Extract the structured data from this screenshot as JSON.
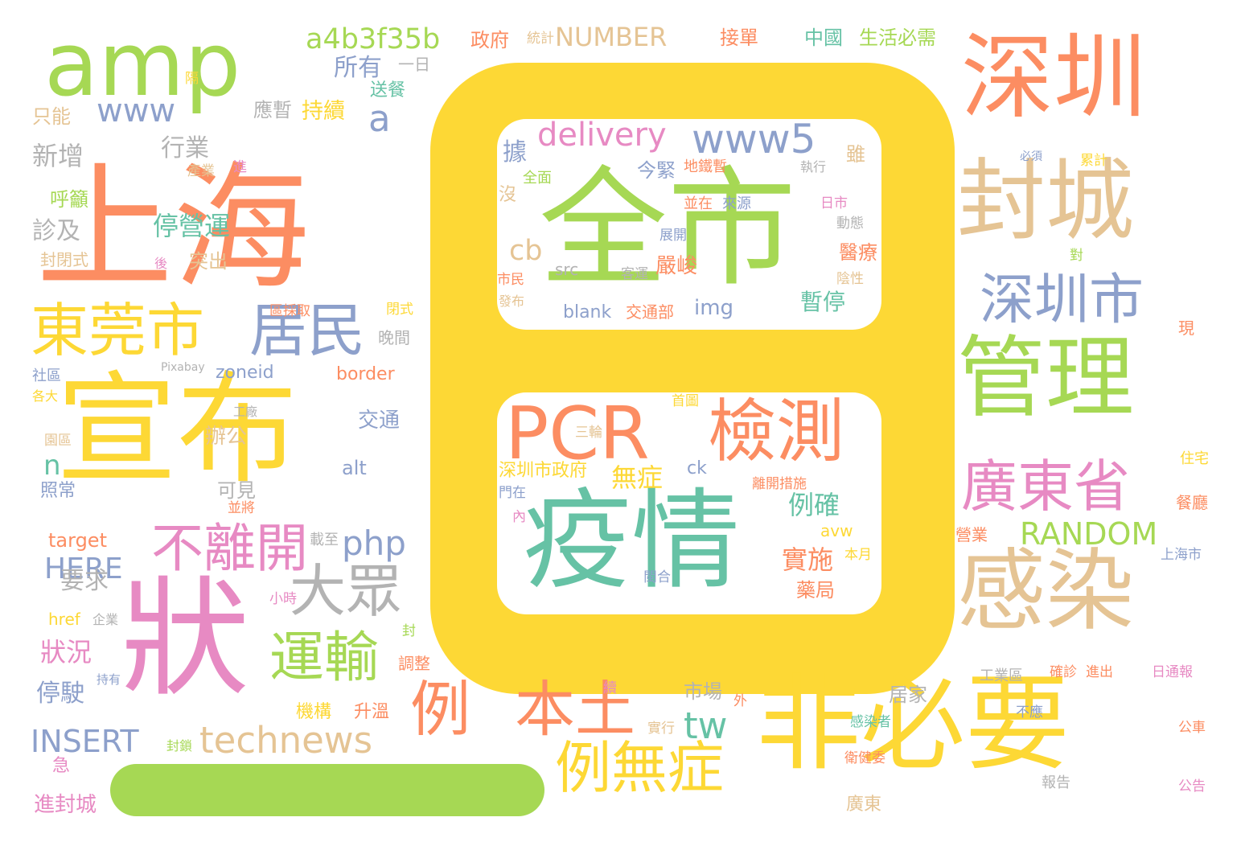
{
  "palette": {
    "yellow": "#fdd835",
    "green": "#a6d854",
    "orange": "#fc8d62",
    "tan": "#e5c494",
    "pink": "#e78ac3",
    "teal": "#66c2a5",
    "blue": "#8da0cb",
    "gray": "#b3b3b3",
    "background": "#ffffff"
  },
  "words": [
    {
      "text": "全市",
      "color": "green"
    },
    {
      "text": "疫情",
      "color": "teal"
    },
    {
      "text": "PCR",
      "color": "orange"
    },
    {
      "text": "檢測",
      "color": "orange"
    },
    {
      "text": "www5",
      "color": "blue"
    },
    {
      "text": "delivery",
      "color": "pink"
    },
    {
      "text": "上海",
      "color": "orange"
    },
    {
      "text": "amp",
      "color": "green"
    },
    {
      "text": "宣布",
      "color": "yellow"
    },
    {
      "text": "狀",
      "color": "pink"
    },
    {
      "text": "深圳",
      "color": "orange"
    },
    {
      "text": "封城",
      "color": "tan"
    },
    {
      "text": "管理",
      "color": "green"
    },
    {
      "text": "感染",
      "color": "tan"
    },
    {
      "text": "非必要",
      "color": "yellow"
    },
    {
      "text": "深圳市",
      "color": "blue"
    },
    {
      "text": "廣東省",
      "color": "pink"
    },
    {
      "text": "東莞市",
      "color": "yellow"
    },
    {
      "text": "居民",
      "color": "blue"
    },
    {
      "text": "大眾",
      "color": "gray"
    },
    {
      "text": "運輸",
      "color": "green"
    },
    {
      "text": "不離開",
      "color": "pink"
    },
    {
      "text": "例",
      "color": "orange"
    },
    {
      "text": "本土",
      "color": "orange"
    },
    {
      "text": "例無症",
      "color": "yellow"
    },
    {
      "text": "technews",
      "color": "tan"
    },
    {
      "text": "tw",
      "color": "teal"
    },
    {
      "text": "a4b3f35b",
      "color": "green"
    },
    {
      "text": "www",
      "color": "blue"
    },
    {
      "text": "NUMBER",
      "color": "tan"
    },
    {
      "text": "RANDOM",
      "color": "green"
    },
    {
      "text": "INSERT",
      "color": "blue"
    },
    {
      "text": "HERE",
      "color": "blue"
    },
    {
      "text": "php",
      "color": "blue"
    },
    {
      "text": "a",
      "color": "blue"
    },
    {
      "text": "n",
      "color": "teal"
    },
    {
      "text": "cb",
      "color": "tan"
    },
    {
      "text": "停營運",
      "color": "teal"
    },
    {
      "text": "所有",
      "color": "blue"
    },
    {
      "text": "新增",
      "color": "gray"
    },
    {
      "text": "行業",
      "color": "gray"
    },
    {
      "text": "診及",
      "color": "gray"
    },
    {
      "text": "要求",
      "color": "gray"
    },
    {
      "text": "狀況",
      "color": "pink"
    },
    {
      "text": "停駛",
      "color": "blue"
    },
    {
      "text": "政府",
      "color": "orange"
    },
    {
      "text": "統計",
      "color": "tan"
    },
    {
      "text": "接單",
      "color": "orange"
    },
    {
      "text": "中國",
      "color": "teal"
    },
    {
      "text": "生活必需",
      "color": "green"
    },
    {
      "text": "例確",
      "color": "teal"
    },
    {
      "text": "實施",
      "color": "orange"
    },
    {
      "text": "無症",
      "color": "yellow"
    },
    {
      "text": "暫停",
      "color": "teal"
    },
    {
      "text": "嚴峻",
      "color": "orange"
    },
    {
      "text": "醫療",
      "color": "orange"
    },
    {
      "text": "據",
      "color": "blue"
    },
    {
      "text": "今緊",
      "color": "blue"
    },
    {
      "text": "img",
      "color": "blue"
    },
    {
      "text": "blank",
      "color": "blue"
    },
    {
      "text": "交通部",
      "color": "orange"
    },
    {
      "text": "src",
      "color": "gray"
    },
    {
      "text": "客運",
      "color": "gray"
    },
    {
      "text": "ck",
      "color": "blue"
    },
    {
      "text": "avw",
      "color": "yellow"
    },
    {
      "text": "藥局",
      "color": "orange"
    },
    {
      "text": "沒",
      "color": "tan"
    },
    {
      "text": "全面",
      "color": "green"
    },
    {
      "text": "地鐵暫",
      "color": "orange"
    },
    {
      "text": "執行",
      "color": "gray"
    },
    {
      "text": "雖",
      "color": "tan"
    },
    {
      "text": "市民",
      "color": "orange"
    },
    {
      "text": "發布",
      "color": "tan"
    },
    {
      "text": "並在",
      "color": "orange"
    },
    {
      "text": "來源",
      "color": "blue"
    },
    {
      "text": "日市",
      "color": "pink"
    },
    {
      "text": "動態",
      "color": "gray"
    },
    {
      "text": "展開",
      "color": "blue"
    },
    {
      "text": "陰性",
      "color": "tan"
    },
    {
      "text": "三輪",
      "color": "tan"
    },
    {
      "text": "深圳市政府",
      "color": "yellow"
    },
    {
      "text": "門在",
      "color": "blue"
    },
    {
      "text": "內",
      "color": "pink"
    },
    {
      "text": "離開措施",
      "color": "orange"
    },
    {
      "text": "首圖",
      "color": "yellow"
    },
    {
      "text": "閩合",
      "color": "blue"
    },
    {
      "text": "本月",
      "color": "yellow"
    },
    {
      "text": "交通",
      "color": "blue"
    },
    {
      "text": "alt",
      "color": "blue"
    },
    {
      "text": "border",
      "color": "orange"
    },
    {
      "text": "zoneid",
      "color": "blue"
    },
    {
      "text": "Pixabay",
      "color": "gray"
    },
    {
      "text": "工廠",
      "color": "gray"
    },
    {
      "text": "辦公",
      "color": "tan"
    },
    {
      "text": "可見",
      "color": "gray"
    },
    {
      "text": "並將",
      "color": "orange"
    },
    {
      "text": "target",
      "color": "orange"
    },
    {
      "text": "載至",
      "color": "gray"
    },
    {
      "text": "小時",
      "color": "pink"
    },
    {
      "text": "href",
      "color": "yellow"
    },
    {
      "text": "企業",
      "color": "gray"
    },
    {
      "text": "持有",
      "color": "blue"
    },
    {
      "text": "調整",
      "color": "orange"
    },
    {
      "text": "封",
      "color": "green"
    },
    {
      "text": "市場",
      "color": "gray"
    },
    {
      "text": "居家",
      "color": "gray"
    },
    {
      "text": "機構",
      "color": "yellow"
    },
    {
      "text": "升溫",
      "color": "orange"
    },
    {
      "text": "外",
      "color": "orange"
    },
    {
      "text": "實行",
      "color": "tan"
    },
    {
      "text": "續",
      "color": "pink"
    },
    {
      "text": "封鎖",
      "color": "green"
    },
    {
      "text": "急",
      "color": "pink"
    },
    {
      "text": "進封城",
      "color": "pink"
    },
    {
      "text": "一日",
      "color": "gray"
    },
    {
      "text": "送餐",
      "color": "teal"
    },
    {
      "text": "持續",
      "color": "yellow"
    },
    {
      "text": "應暫",
      "color": "gray"
    },
    {
      "text": "只能",
      "color": "tan"
    },
    {
      "text": "隔",
      "color": "yellow"
    },
    {
      "text": "呼籲",
      "color": "green"
    },
    {
      "text": "產業",
      "color": "tan"
    },
    {
      "text": "進",
      "color": "pink"
    },
    {
      "text": "突出",
      "color": "tan"
    },
    {
      "text": "後",
      "color": "pink"
    },
    {
      "text": "封閉式",
      "color": "tan"
    },
    {
      "text": "區採取",
      "color": "orange"
    },
    {
      "text": "閉式",
      "color": "yellow"
    },
    {
      "text": "晚間",
      "color": "gray"
    },
    {
      "text": "社區",
      "color": "blue"
    },
    {
      "text": "各大",
      "color": "yellow"
    },
    {
      "text": "園區",
      "color": "tan"
    },
    {
      "text": "照常",
      "color": "blue"
    },
    {
      "text": "必須",
      "color": "blue"
    },
    {
      "text": "累計",
      "color": "yellow"
    },
    {
      "text": "對",
      "color": "green"
    },
    {
      "text": "現",
      "color": "orange"
    },
    {
      "text": "住宅",
      "color": "yellow"
    },
    {
      "text": "餐廳",
      "color": "orange"
    },
    {
      "text": "營業",
      "color": "orange"
    },
    {
      "text": "上海市",
      "color": "blue"
    },
    {
      "text": "工業區",
      "color": "gray"
    },
    {
      "text": "確診",
      "color": "orange"
    },
    {
      "text": "進出",
      "color": "orange"
    },
    {
      "text": "日通報",
      "color": "pink"
    },
    {
      "text": "不應",
      "color": "blue"
    },
    {
      "text": "公車",
      "color": "orange"
    },
    {
      "text": "感染者",
      "color": "teal"
    },
    {
      "text": "衛健委",
      "color": "orange"
    },
    {
      "text": "報告",
      "color": "gray"
    },
    {
      "text": "廣東",
      "color": "tan"
    },
    {
      "text": "公告",
      "color": "pink"
    }
  ]
}
